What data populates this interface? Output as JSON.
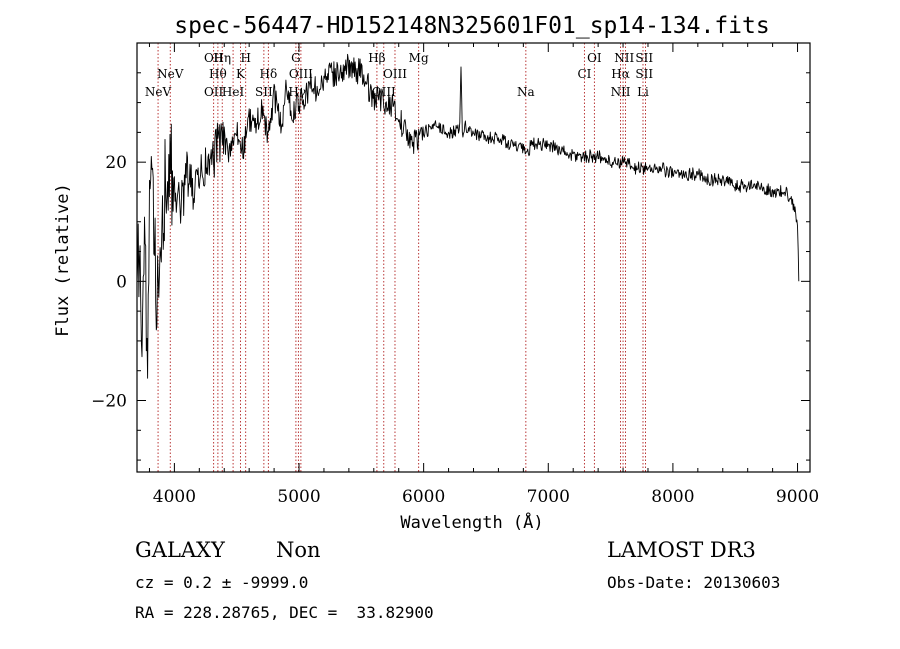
{
  "chart_data": {
    "type": "line",
    "title": "spec-56447-HD152148N325601F01_sp14-134.fits",
    "xlabel": "Wavelength (Å)",
    "ylabel": "Flux (relative)",
    "xlim": [
      3700,
      9100
    ],
    "ylim": [
      -32,
      40
    ],
    "xticks": [
      4000,
      5000,
      6000,
      7000,
      8000,
      9000
    ],
    "yticks": [
      -20,
      0,
      20
    ],
    "series": [
      {
        "name": "flux",
        "x": [
          3700,
          3720,
          3740,
          3760,
          3780,
          3800,
          3830,
          3860,
          3900,
          3950,
          4000,
          4050,
          4100,
          4150,
          4200,
          4250,
          4300,
          4350,
          4400,
          4450,
          4500,
          4550,
          4600,
          4650,
          4700,
          4750,
          4800,
          4860,
          4900,
          4950,
          5000,
          5050,
          5100,
          5150,
          5200,
          5300,
          5400,
          5500,
          5550,
          5600,
          5650,
          5700,
          5750,
          5800,
          5850,
          5890,
          5950,
          6000,
          6100,
          6200,
          6250,
          6290,
          6300,
          6310,
          6330,
          6400,
          6500,
          6600,
          6700,
          6800,
          6830,
          6860,
          6900,
          7000,
          7100,
          7200,
          7300,
          7400,
          7500,
          7600,
          7700,
          7800,
          7900,
          8000,
          8100,
          8200,
          8300,
          8400,
          8500,
          8600,
          8700,
          8800,
          8900,
          8950,
          8980,
          9000,
          9010
        ],
        "y": [
          -5,
          10,
          -20,
          15,
          -15,
          8,
          17,
          -5,
          12,
          19,
          16,
          12,
          18,
          15,
          17,
          19,
          20,
          23,
          24,
          21,
          25,
          22,
          27,
          26,
          29,
          24,
          31,
          26,
          33,
          28,
          30,
          31,
          33,
          32,
          34,
          35,
          36,
          35,
          33,
          30,
          31,
          29,
          30,
          27,
          26,
          23,
          24,
          25,
          26,
          25,
          25,
          26,
          36,
          25,
          26,
          25,
          24,
          24,
          23,
          22,
          21,
          23,
          23,
          23,
          22,
          21,
          21,
          21,
          20,
          20,
          19,
          19,
          19,
          18,
          18,
          18,
          17,
          17,
          16,
          16,
          16,
          15,
          15,
          14,
          12,
          10,
          0
        ]
      }
    ],
    "emission_lines": [
      {
        "label": "NeV",
        "wavelength": 3869,
        "row": 2
      },
      {
        "label": "NeV",
        "wavelength": 3967,
        "row": 1
      },
      {
        "label": "OII",
        "wavelength": 4315,
        "row": 0
      },
      {
        "label": "OII",
        "wavelength": 4315,
        "row": 2
      },
      {
        "label": "Hη",
        "wavelength": 4384,
        "row": 0
      },
      {
        "label": "Hθ",
        "wavelength": 4349,
        "row": 1
      },
      {
        "label": "HeI",
        "wavelength": 4471,
        "row": 2
      },
      {
        "label": "H",
        "wavelength": 4572,
        "row": 0
      },
      {
        "label": "K",
        "wavelength": 4530,
        "row": 1
      },
      {
        "label": "SII",
        "wavelength": 4718,
        "row": 2
      },
      {
        "label": "Hδ",
        "wavelength": 4754,
        "row": 1
      },
      {
        "label": "G",
        "wavelength": 4975,
        "row": 0
      },
      {
        "label": "OIII",
        "wavelength": 5015,
        "row": 1
      },
      {
        "label": "Hγ",
        "wavelength": 4985,
        "row": 2
      },
      {
        "label": "Hβ",
        "wavelength": 5625,
        "row": 0
      },
      {
        "label": "OIII",
        "wavelength": 5770,
        "row": 1
      },
      {
        "label": "OIII",
        "wavelength": 5680,
        "row": 2
      },
      {
        "label": "Mg",
        "wavelength": 5960,
        "row": 0
      },
      {
        "label": "Na",
        "wavelength": 6820,
        "row": 2
      },
      {
        "label": "OI",
        "wavelength": 7370,
        "row": 0
      },
      {
        "label": "CI",
        "wavelength": 7290,
        "row": 1
      },
      {
        "label": "NII",
        "wavelength": 7610,
        "row": 0
      },
      {
        "label": "Hα",
        "wavelength": 7580,
        "row": 1
      },
      {
        "label": "NII",
        "wavelength": 7580,
        "row": 2
      },
      {
        "label": "SII",
        "wavelength": 7770,
        "row": 0
      },
      {
        "label": "SII",
        "wavelength": 7770,
        "row": 1
      },
      {
        "label": "Li",
        "wavelength": 7760,
        "row": 2
      }
    ],
    "line_markers": [
      3869,
      3967,
      4315,
      4349,
      4384,
      4471,
      4530,
      4572,
      4718,
      4754,
      4975,
      4995,
      5015,
      5625,
      5680,
      5770,
      5960,
      6820,
      7290,
      7370,
      7580,
      7600,
      7620,
      7760,
      7780
    ]
  },
  "info": {
    "object_class": "GALAXY",
    "subclass": "Non",
    "survey": "LAMOST DR3",
    "redshift_line": "cz = 0.2 ± -9999.0",
    "obs_date_line": "Obs-Date: 20130603",
    "coords_line": "RA = 228.28765, DEC =  33.82900"
  },
  "colors": {
    "spectrum": "#000000",
    "marker": "#b22222",
    "axis": "#000000"
  }
}
